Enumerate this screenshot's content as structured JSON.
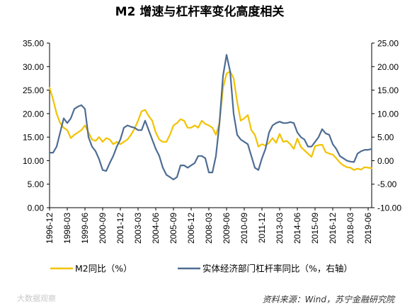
{
  "chart_data": {
    "type": "line",
    "title": "M2 增速与杠杆率变化高度相关",
    "source": "资料来源：Wind，苏宁金融研究院",
    "watermark": "大数据观察",
    "x_tick_labels": [
      "1996-12",
      "1998-03",
      "1999-06",
      "2000-09",
      "2001-12",
      "2003-03",
      "2004-06",
      "2005-09",
      "2006-12",
      "2008-03",
      "2009-06",
      "2010-09",
      "2011-12",
      "2013-03",
      "2014-06",
      "2015-09",
      "2016-12",
      "2018-03",
      "2019-06"
    ],
    "x_range": [
      "1996-12",
      "2019-09"
    ],
    "y_left": {
      "min": 0,
      "max": 35,
      "step": 5,
      "tick_labels": [
        "0.00",
        "5.00",
        "10.00",
        "15.00",
        "20.00",
        "25.00",
        "30.00",
        "35.00"
      ]
    },
    "y_right": {
      "min": -10,
      "max": 25,
      "step": 5,
      "tick_labels": [
        "-10.00",
        "-5.00",
        "0.00",
        "5.00",
        "10.00",
        "15.00",
        "20.00",
        "25.00"
      ]
    },
    "grid": false,
    "legend_position": "bottom",
    "series": [
      {
        "name": "M2同比（%）",
        "axis": "left",
        "color": "#f2c200",
        "points": [
          [
            "1996-12",
            25.5
          ],
          [
            "1997-03",
            23.0
          ],
          [
            "1997-06",
            20.0
          ],
          [
            "1997-09",
            18.0
          ],
          [
            "1997-12",
            17.0
          ],
          [
            "1998-03",
            16.5
          ],
          [
            "1998-06",
            14.8
          ],
          [
            "1998-09",
            15.5
          ],
          [
            "1998-12",
            16.0
          ],
          [
            "1999-03",
            16.5
          ],
          [
            "1999-06",
            17.5
          ],
          [
            "1999-09",
            16.0
          ],
          [
            "1999-12",
            14.5
          ],
          [
            "2000-03",
            14.2
          ],
          [
            "2000-06",
            15.0
          ],
          [
            "2000-09",
            14.0
          ],
          [
            "2000-12",
            14.8
          ],
          [
            "2001-03",
            14.5
          ],
          [
            "2001-06",
            13.5
          ],
          [
            "2001-09",
            14.0
          ],
          [
            "2001-12",
            13.5
          ],
          [
            "2002-03",
            14.0
          ],
          [
            "2002-06",
            14.5
          ],
          [
            "2002-09",
            15.5
          ],
          [
            "2002-12",
            16.8
          ],
          [
            "2003-03",
            18.5
          ],
          [
            "2003-06",
            20.5
          ],
          [
            "2003-09",
            20.8
          ],
          [
            "2003-12",
            19.5
          ],
          [
            "2004-03",
            18.5
          ],
          [
            "2004-06",
            16.0
          ],
          [
            "2004-09",
            14.5
          ],
          [
            "2004-12",
            14.0
          ],
          [
            "2005-03",
            14.0
          ],
          [
            "2005-06",
            15.5
          ],
          [
            "2005-09",
            17.5
          ],
          [
            "2005-12",
            18.0
          ],
          [
            "2006-03",
            18.8
          ],
          [
            "2006-06",
            18.5
          ],
          [
            "2006-09",
            17.0
          ],
          [
            "2006-12",
            17.0
          ],
          [
            "2007-03",
            17.5
          ],
          [
            "2007-06",
            17.0
          ],
          [
            "2007-09",
            18.5
          ],
          [
            "2007-12",
            17.8
          ],
          [
            "2008-03",
            17.5
          ],
          [
            "2008-06",
            17.0
          ],
          [
            "2008-09",
            15.5
          ],
          [
            "2008-12",
            18.0
          ],
          [
            "2009-03",
            25.5
          ],
          [
            "2009-06",
            28.5
          ],
          [
            "2009-09",
            29.0
          ],
          [
            "2009-12",
            27.5
          ],
          [
            "2010-03",
            22.5
          ],
          [
            "2010-06",
            18.5
          ],
          [
            "2010-09",
            19.0
          ],
          [
            "2010-12",
            19.7
          ],
          [
            "2011-03",
            16.5
          ],
          [
            "2011-06",
            15.5
          ],
          [
            "2011-09",
            13.0
          ],
          [
            "2011-12",
            13.5
          ],
          [
            "2012-03",
            13.2
          ],
          [
            "2012-06",
            13.8
          ],
          [
            "2012-09",
            14.8
          ],
          [
            "2012-12",
            13.8
          ],
          [
            "2013-03",
            15.7
          ],
          [
            "2013-06",
            14.0
          ],
          [
            "2013-09",
            14.2
          ],
          [
            "2013-12",
            13.5
          ],
          [
            "2014-03",
            12.5
          ],
          [
            "2014-06",
            14.7
          ],
          [
            "2014-09",
            12.9
          ],
          [
            "2014-12",
            12.2
          ],
          [
            "2015-03",
            11.5
          ],
          [
            "2015-06",
            10.8
          ],
          [
            "2015-09",
            13.1
          ],
          [
            "2015-12",
            13.3
          ],
          [
            "2016-03",
            13.4
          ],
          [
            "2016-06",
            11.8
          ],
          [
            "2016-09",
            11.5
          ],
          [
            "2016-12",
            11.3
          ],
          [
            "2017-03",
            10.5
          ],
          [
            "2017-06",
            9.6
          ],
          [
            "2017-09",
            9.0
          ],
          [
            "2017-12",
            8.6
          ],
          [
            "2018-03",
            8.5
          ],
          [
            "2018-06",
            8.0
          ],
          [
            "2018-09",
            8.3
          ],
          [
            "2018-12",
            8.1
          ],
          [
            "2019-03",
            8.6
          ],
          [
            "2019-06",
            8.5
          ],
          [
            "2019-09",
            8.4
          ]
        ]
      },
      {
        "name": "实体经济部门杠杆率同比（%，右轴）",
        "axis": "right",
        "color": "#4e6d93",
        "points": [
          [
            "1996-12",
            1.7
          ],
          [
            "1997-03",
            1.7
          ],
          [
            "1997-06",
            3.0
          ],
          [
            "1997-09",
            6.0
          ],
          [
            "1997-12",
            9.0
          ],
          [
            "1998-03",
            8.0
          ],
          [
            "1998-06",
            9.0
          ],
          [
            "1998-09",
            11.0
          ],
          [
            "1998-12",
            11.5
          ],
          [
            "1999-03",
            11.8
          ],
          [
            "1999-06",
            11.0
          ],
          [
            "1999-09",
            5.0
          ],
          [
            "1999-12",
            3.0
          ],
          [
            "2000-03",
            2.0
          ],
          [
            "2000-06",
            0.3
          ],
          [
            "2000-09",
            -2.0
          ],
          [
            "2000-12",
            -2.2
          ],
          [
            "2001-03",
            -0.5
          ],
          [
            "2001-06",
            1.0
          ],
          [
            "2001-09",
            3.0
          ],
          [
            "2001-12",
            4.5
          ],
          [
            "2002-03",
            7.0
          ],
          [
            "2002-06",
            7.5
          ],
          [
            "2002-09",
            7.2
          ],
          [
            "2002-12",
            7.0
          ],
          [
            "2003-03",
            6.5
          ],
          [
            "2003-06",
            6.5
          ],
          [
            "2003-09",
            8.5
          ],
          [
            "2003-12",
            6.5
          ],
          [
            "2004-03",
            4.5
          ],
          [
            "2004-06",
            2.5
          ],
          [
            "2004-09",
            1.0
          ],
          [
            "2004-12",
            -1.5
          ],
          [
            "2005-03",
            -3.0
          ],
          [
            "2005-06",
            -3.5
          ],
          [
            "2005-09",
            -4.0
          ],
          [
            "2005-12",
            -3.5
          ],
          [
            "2006-03",
            -1.0
          ],
          [
            "2006-06",
            -1.0
          ],
          [
            "2006-09",
            -1.5
          ],
          [
            "2006-12",
            -1.0
          ],
          [
            "2007-03",
            -0.5
          ],
          [
            "2007-06",
            1.0
          ],
          [
            "2007-09",
            1.0
          ],
          [
            "2007-12",
            0.5
          ],
          [
            "2008-03",
            -2.5
          ],
          [
            "2008-06",
            -2.5
          ],
          [
            "2008-09",
            1.0
          ],
          [
            "2008-12",
            8.0
          ],
          [
            "2009-03",
            18.0
          ],
          [
            "2009-06",
            22.5
          ],
          [
            "2009-09",
            19.0
          ],
          [
            "2009-12",
            10.0
          ],
          [
            "2010-03",
            5.5
          ],
          [
            "2010-06",
            4.5
          ],
          [
            "2010-09",
            4.0
          ],
          [
            "2010-12",
            3.5
          ],
          [
            "2011-03",
            1.0
          ],
          [
            "2011-06",
            -1.5
          ],
          [
            "2011-09",
            -2.0
          ],
          [
            "2011-12",
            0.5
          ],
          [
            "2012-03",
            2.5
          ],
          [
            "2012-06",
            6.0
          ],
          [
            "2012-09",
            7.5
          ],
          [
            "2012-12",
            8.0
          ],
          [
            "2013-03",
            8.3
          ],
          [
            "2013-06",
            8.0
          ],
          [
            "2013-09",
            8.0
          ],
          [
            "2013-12",
            8.2
          ],
          [
            "2014-03",
            8.0
          ],
          [
            "2014-06",
            6.0
          ],
          [
            "2014-09",
            5.0
          ],
          [
            "2014-12",
            4.5
          ],
          [
            "2015-03",
            3.0
          ],
          [
            "2015-06",
            3.0
          ],
          [
            "2015-09",
            4.0
          ],
          [
            "2015-12",
            5.0
          ],
          [
            "2016-03",
            6.7
          ],
          [
            "2016-06",
            5.8
          ],
          [
            "2016-09",
            5.5
          ],
          [
            "2016-12",
            3.5
          ],
          [
            "2017-03",
            2.5
          ],
          [
            "2017-06",
            1.0
          ],
          [
            "2017-09",
            0.5
          ],
          [
            "2017-12",
            0.0
          ],
          [
            "2018-03",
            -0.2
          ],
          [
            "2018-06",
            -0.3
          ],
          [
            "2018-09",
            1.5
          ],
          [
            "2018-12",
            2.0
          ],
          [
            "2019-03",
            2.3
          ],
          [
            "2019-06",
            2.3
          ],
          [
            "2019-09",
            2.5
          ]
        ]
      }
    ]
  }
}
